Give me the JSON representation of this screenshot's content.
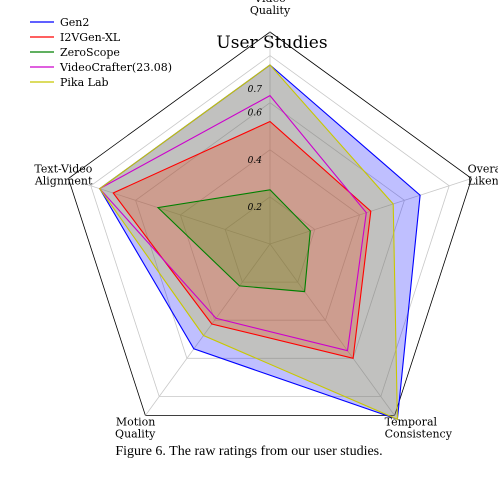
{
  "chart_data": {
    "type": "radar",
    "title": "User Studies",
    "axes": [
      [
        "Video",
        "Quality"
      ],
      [
        "Overall",
        "Likeness"
      ],
      [
        "Temporal",
        "Consistency"
      ],
      [
        "Motion",
        "Quality"
      ],
      [
        "Text-Video",
        "Alignment"
      ]
    ],
    "rticks": [
      "0.2",
      "0.4",
      "0.6",
      "0.7"
    ],
    "rtick_values": [
      0.2,
      0.4,
      0.6,
      0.7
    ],
    "rgrid": [
      0.2,
      0.4,
      0.6,
      0.8
    ],
    "rlim": [
      0,
      0.9
    ],
    "grid": true,
    "legend_position": "top-left",
    "series": [
      {
        "name": "Gen2",
        "color": "#0000ff",
        "fill": true,
        "values": [
          0.76,
          0.67,
          0.92,
          0.55,
          0.76
        ]
      },
      {
        "name": "I2VGen-XL",
        "color": "#ff0000",
        "fill": true,
        "values": [
          0.52,
          0.45,
          0.6,
          0.42,
          0.7
        ]
      },
      {
        "name": "ZeroScope",
        "color": "#008000",
        "fill": true,
        "values": [
          0.23,
          0.18,
          0.25,
          0.22,
          0.5
        ]
      },
      {
        "name": "VideoCrafter(23.08)",
        "color": "#cc00cc",
        "fill": false,
        "values": [
          0.63,
          0.43,
          0.56,
          0.39,
          0.76
        ]
      },
      {
        "name": "Pika Lab",
        "color": "#c8c800",
        "fill": true,
        "values": [
          0.76,
          0.55,
          0.92,
          0.48,
          0.76
        ]
      }
    ]
  },
  "caption": "Figure 6. The raw ratings from our user studies."
}
